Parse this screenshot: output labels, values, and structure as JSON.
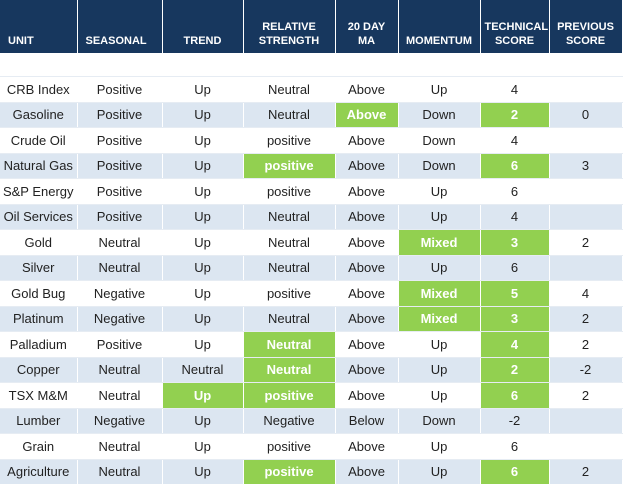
{
  "table": {
    "columns": [
      "UNIT",
      "SEASONAL",
      "TREND",
      "RELATIVE STRENGTH",
      "20 DAY MA",
      "MOMENTUM",
      "TECHNICAL SCORE",
      "PREVIOUS SCORE"
    ],
    "rows": [
      [
        "CRB Index",
        "Positive",
        "Up",
        "Neutral",
        "Above",
        "Up",
        4,
        null
      ],
      [
        "Gasoline",
        "Positive",
        "Up",
        "Neutral",
        "Above",
        "Down",
        2,
        0
      ],
      [
        "Crude Oil",
        "Positive",
        "Up",
        "positive",
        "Above",
        "Down",
        4,
        null
      ],
      [
        "Natural Gas",
        "Positive",
        "Up",
        "positive",
        "Above",
        "Down",
        6,
        3
      ],
      [
        "S&P Energy",
        "Positive",
        "Up",
        "positive",
        "Above",
        "Up",
        6,
        null
      ],
      [
        "Oil Services",
        "Positive",
        "Up",
        "Neutral",
        "Above",
        "Up",
        4,
        null
      ],
      [
        "Gold",
        "Neutral",
        "Up",
        "Neutral",
        "Above",
        "Mixed",
        3,
        2
      ],
      [
        "Silver",
        "Neutral",
        "Up",
        "Neutral",
        "Above",
        "Up",
        6,
        null
      ],
      [
        "Gold Bug",
        "Negative",
        "Up",
        "positive",
        "Above",
        "Mixed",
        5,
        4
      ],
      [
        "Platinum",
        "Negative",
        "Up",
        "Neutral",
        "Above",
        "Mixed",
        3,
        2
      ],
      [
        "Palladium",
        "Positive",
        "Up",
        "Neutral",
        "Above",
        "Up",
        4,
        2
      ],
      [
        "Copper",
        "Neutral",
        "Neutral",
        "Neutral",
        "Above",
        "Up",
        2,
        -2
      ],
      [
        "TSX M&M",
        "Neutral",
        "Up",
        "positive",
        "Above",
        "Up",
        6,
        2
      ],
      [
        "Lumber",
        "Negative",
        "Up",
        "Negative",
        "Below",
        "Down",
        -2,
        null
      ],
      [
        "Grain",
        "Neutral",
        "Up",
        "positive",
        "Above",
        "Up",
        6,
        null
      ],
      [
        "Agriculture",
        "Neutral",
        "Up",
        "positive",
        "Above",
        "Up",
        6,
        2
      ]
    ]
  }
}
